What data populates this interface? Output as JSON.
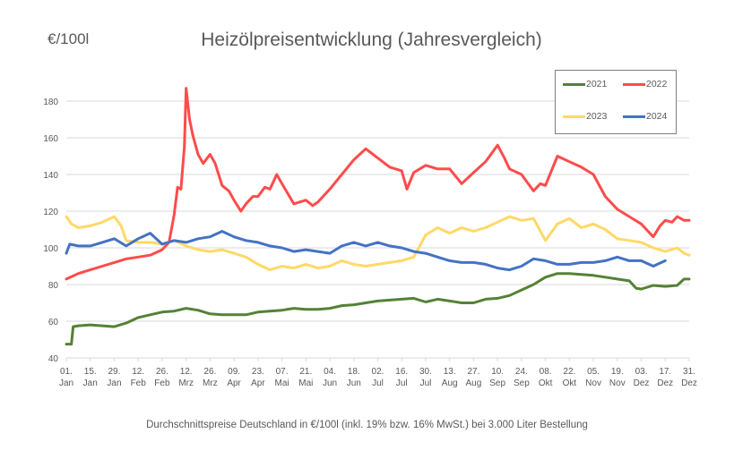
{
  "chart_data": {
    "type": "line",
    "title": "Heizölpreisentwicklung (Jahresvergleich)",
    "ylabel": "€/100l",
    "xlabel": "",
    "footnote": "Durchschnittspreise Deutschland in €/100l (inkl. 19% bzw. 16%  MwSt.) bei 3.000 Liter Bestellung",
    "ylim": [
      40,
      190
    ],
    "yticks": [
      40,
      60,
      80,
      100,
      120,
      140,
      160,
      180
    ],
    "grid": true,
    "legend_position": "top-right",
    "x_day_range": [
      1,
      365
    ],
    "xtick_labels": [
      [
        "01.",
        "Jan"
      ],
      [
        "15.",
        "Jan"
      ],
      [
        "29.",
        "Jan"
      ],
      [
        "12.",
        "Feb"
      ],
      [
        "26.",
        "Feb"
      ],
      [
        "12.",
        "Mrz"
      ],
      [
        "26.",
        "Mrz"
      ],
      [
        "09.",
        "Apr"
      ],
      [
        "23.",
        "Apr"
      ],
      [
        "07.",
        "Mai"
      ],
      [
        "21.",
        "Mai"
      ],
      [
        "04.",
        "Jun"
      ],
      [
        "18.",
        "Jun"
      ],
      [
        "02.",
        "Jul"
      ],
      [
        "16.",
        "Jul"
      ],
      [
        "30.",
        "Jul"
      ],
      [
        "13.",
        "Aug"
      ],
      [
        "27.",
        "Aug"
      ],
      [
        "10.",
        "Sep"
      ],
      [
        "24.",
        "Sep"
      ],
      [
        "08.",
        "Okt"
      ],
      [
        "22.",
        "Okt"
      ],
      [
        "05.",
        "Nov"
      ],
      [
        "19.",
        "Nov"
      ],
      [
        "03.",
        "Dez"
      ],
      [
        "17.",
        "Dez"
      ],
      [
        "31.",
        "Dez"
      ]
    ],
    "series": [
      {
        "name": "2021",
        "color": "#548235",
        "points": [
          [
            1,
            47.5
          ],
          [
            4,
            47.5
          ],
          [
            5,
            57
          ],
          [
            8,
            57.5
          ],
          [
            15,
            58
          ],
          [
            22,
            57.5
          ],
          [
            29,
            57
          ],
          [
            36,
            59
          ],
          [
            43,
            62
          ],
          [
            50,
            63.5
          ],
          [
            57,
            65
          ],
          [
            64,
            65.5
          ],
          [
            71,
            67
          ],
          [
            78,
            66
          ],
          [
            85,
            64
          ],
          [
            92,
            63.5
          ],
          [
            99,
            63.5
          ],
          [
            106,
            63.5
          ],
          [
            113,
            65
          ],
          [
            120,
            65.5
          ],
          [
            127,
            66
          ],
          [
            134,
            67
          ],
          [
            141,
            66.5
          ],
          [
            148,
            66.5
          ],
          [
            155,
            67
          ],
          [
            162,
            68.5
          ],
          [
            169,
            69
          ],
          [
            176,
            70
          ],
          [
            183,
            71
          ],
          [
            190,
            71.5
          ],
          [
            197,
            72
          ],
          [
            204,
            72.5
          ],
          [
            211,
            70.5
          ],
          [
            218,
            72
          ],
          [
            225,
            71
          ],
          [
            232,
            70
          ],
          [
            239,
            70
          ],
          [
            246,
            72
          ],
          [
            253,
            72.5
          ],
          [
            260,
            74
          ],
          [
            267,
            77
          ],
          [
            274,
            80
          ],
          [
            281,
            84
          ],
          [
            288,
            86
          ],
          [
            295,
            86
          ],
          [
            302,
            85.5
          ],
          [
            309,
            85
          ],
          [
            316,
            84
          ],
          [
            323,
            83
          ],
          [
            330,
            82
          ],
          [
            334,
            78
          ],
          [
            337,
            77.5
          ],
          [
            344,
            79.5
          ],
          [
            351,
            79
          ],
          [
            358,
            79.5
          ],
          [
            362,
            83
          ],
          [
            365,
            83
          ]
        ]
      },
      {
        "name": "2022",
        "color": "#ff4b4b",
        "points": [
          [
            1,
            83
          ],
          [
            8,
            86
          ],
          [
            15,
            88
          ],
          [
            22,
            90
          ],
          [
            29,
            92
          ],
          [
            36,
            94
          ],
          [
            43,
            95
          ],
          [
            50,
            96
          ],
          [
            57,
            99
          ],
          [
            61,
            103
          ],
          [
            64,
            118
          ],
          [
            66,
            133
          ],
          [
            68,
            132
          ],
          [
            70,
            155
          ],
          [
            71,
            187
          ],
          [
            73,
            170
          ],
          [
            75,
            161
          ],
          [
            78,
            151
          ],
          [
            81,
            146
          ],
          [
            85,
            151
          ],
          [
            88,
            146
          ],
          [
            92,
            134
          ],
          [
            96,
            131
          ],
          [
            99,
            126
          ],
          [
            103,
            120
          ],
          [
            106,
            124
          ],
          [
            110,
            128
          ],
          [
            113,
            128
          ],
          [
            117,
            133
          ],
          [
            120,
            132
          ],
          [
            124,
            140
          ],
          [
            127,
            135
          ],
          [
            134,
            124
          ],
          [
            141,
            126
          ],
          [
            145,
            123
          ],
          [
            148,
            125
          ],
          [
            155,
            132
          ],
          [
            162,
            140
          ],
          [
            169,
            148
          ],
          [
            176,
            154
          ],
          [
            183,
            149
          ],
          [
            190,
            144
          ],
          [
            197,
            142
          ],
          [
            200,
            132
          ],
          [
            204,
            141
          ],
          [
            211,
            145
          ],
          [
            218,
            143
          ],
          [
            225,
            143
          ],
          [
            232,
            135
          ],
          [
            239,
            141
          ],
          [
            246,
            147
          ],
          [
            253,
            156
          ],
          [
            257,
            149
          ],
          [
            260,
            143
          ],
          [
            267,
            140
          ],
          [
            274,
            131
          ],
          [
            278,
            135
          ],
          [
            281,
            134
          ],
          [
            288,
            150
          ],
          [
            295,
            147
          ],
          [
            302,
            144
          ],
          [
            309,
            140
          ],
          [
            316,
            128
          ],
          [
            323,
            121
          ],
          [
            330,
            117
          ],
          [
            337,
            113
          ],
          [
            344,
            106
          ],
          [
            348,
            112
          ],
          [
            351,
            115
          ],
          [
            355,
            114
          ],
          [
            358,
            117
          ],
          [
            362,
            115
          ],
          [
            365,
            115
          ]
        ]
      },
      {
        "name": "2023",
        "color": "#ffd966",
        "points": [
          [
            1,
            117
          ],
          [
            4,
            113
          ],
          [
            8,
            111
          ],
          [
            15,
            112
          ],
          [
            22,
            114
          ],
          [
            29,
            117
          ],
          [
            33,
            112
          ],
          [
            36,
            104
          ],
          [
            43,
            103
          ],
          [
            50,
            103
          ],
          [
            57,
            102
          ],
          [
            64,
            104
          ],
          [
            71,
            101
          ],
          [
            78,
            99
          ],
          [
            85,
            98
          ],
          [
            92,
            99
          ],
          [
            99,
            97
          ],
          [
            106,
            95
          ],
          [
            113,
            91
          ],
          [
            120,
            88
          ],
          [
            127,
            90
          ],
          [
            134,
            89
          ],
          [
            141,
            91
          ],
          [
            148,
            89
          ],
          [
            155,
            90
          ],
          [
            162,
            93
          ],
          [
            169,
            91
          ],
          [
            176,
            90
          ],
          [
            183,
            91
          ],
          [
            190,
            92
          ],
          [
            197,
            93
          ],
          [
            204,
            95
          ],
          [
            211,
            107
          ],
          [
            218,
            111
          ],
          [
            225,
            108
          ],
          [
            232,
            111
          ],
          [
            239,
            109
          ],
          [
            246,
            111
          ],
          [
            253,
            114
          ],
          [
            260,
            117
          ],
          [
            267,
            115
          ],
          [
            274,
            116
          ],
          [
            281,
            104
          ],
          [
            288,
            113
          ],
          [
            295,
            116
          ],
          [
            302,
            111
          ],
          [
            309,
            113
          ],
          [
            316,
            110
          ],
          [
            323,
            105
          ],
          [
            330,
            104
          ],
          [
            337,
            103
          ],
          [
            344,
            100
          ],
          [
            351,
            98
          ],
          [
            358,
            100
          ],
          [
            362,
            97
          ],
          [
            365,
            96
          ]
        ]
      },
      {
        "name": "2024",
        "color": "#4472c4",
        "points": [
          [
            1,
            97
          ],
          [
            3,
            102
          ],
          [
            8,
            101
          ],
          [
            15,
            101
          ],
          [
            22,
            103
          ],
          [
            29,
            105
          ],
          [
            36,
            101
          ],
          [
            43,
            105
          ],
          [
            50,
            108
          ],
          [
            57,
            102
          ],
          [
            64,
            104
          ],
          [
            71,
            103
          ],
          [
            78,
            105
          ],
          [
            85,
            106
          ],
          [
            92,
            109
          ],
          [
            99,
            106
          ],
          [
            106,
            104
          ],
          [
            113,
            103
          ],
          [
            120,
            101
          ],
          [
            127,
            100
          ],
          [
            134,
            98
          ],
          [
            141,
            99
          ],
          [
            148,
            98
          ],
          [
            155,
            97
          ],
          [
            162,
            101
          ],
          [
            169,
            103
          ],
          [
            176,
            101
          ],
          [
            183,
            103
          ],
          [
            190,
            101
          ],
          [
            197,
            100
          ],
          [
            204,
            98
          ],
          [
            211,
            97
          ],
          [
            218,
            95
          ],
          [
            225,
            93
          ],
          [
            232,
            92
          ],
          [
            239,
            92
          ],
          [
            246,
            91
          ],
          [
            253,
            89
          ],
          [
            260,
            88
          ],
          [
            267,
            90
          ],
          [
            274,
            94
          ],
          [
            281,
            93
          ],
          [
            288,
            91
          ],
          [
            295,
            91
          ],
          [
            302,
            92
          ],
          [
            309,
            92
          ],
          [
            316,
            93
          ],
          [
            323,
            95
          ],
          [
            330,
            93
          ],
          [
            337,
            93
          ],
          [
            344,
            90
          ],
          [
            351,
            93
          ]
        ]
      }
    ]
  }
}
